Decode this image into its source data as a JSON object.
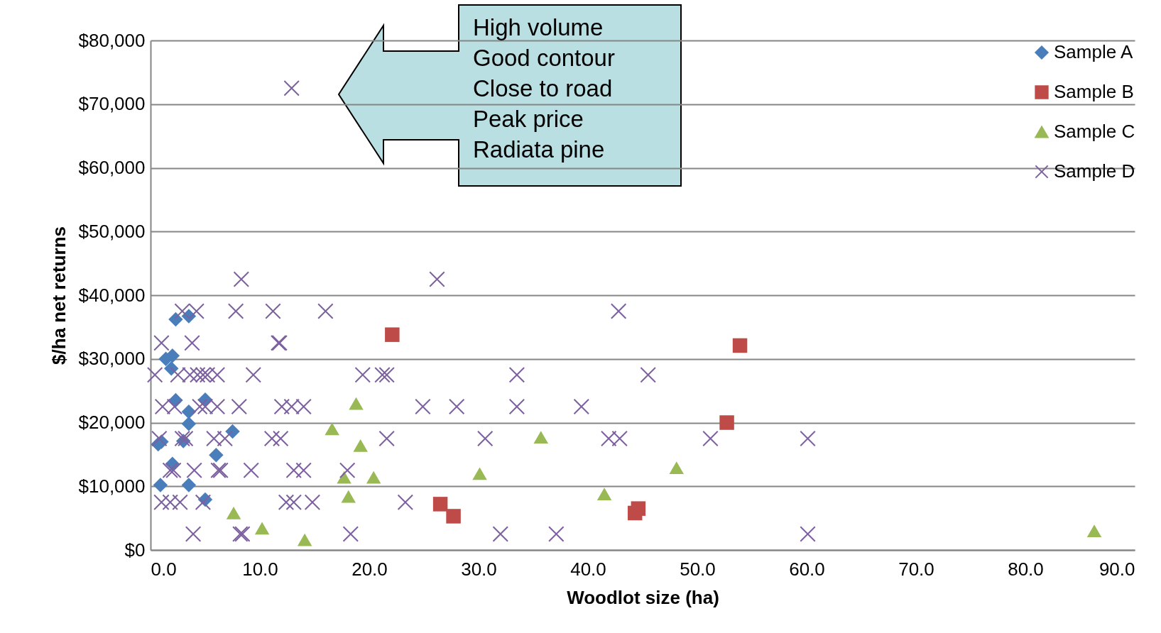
{
  "chart_data": {
    "type": "scatter",
    "xlabel": "Woodlot size (ha)",
    "ylabel": "$/ha net returns",
    "xlim": [
      0,
      90
    ],
    "xticks": [
      {
        "value": 0,
        "label": "0.0"
      },
      {
        "value": 10,
        "label": "10.0"
      },
      {
        "value": 20,
        "label": "20.0"
      },
      {
        "value": 30,
        "label": "30.0"
      },
      {
        "value": 40,
        "label": "40.0"
      },
      {
        "value": 50,
        "label": "50.0"
      },
      {
        "value": 60,
        "label": "60.0"
      },
      {
        "value": 70,
        "label": "70.0"
      },
      {
        "value": 80,
        "label": "80.0"
      },
      {
        "value": 90,
        "label": "90.0"
      }
    ],
    "ylim": [
      0,
      80000
    ],
    "yticks": [
      {
        "value": 0,
        "label": "$0"
      },
      {
        "value": 10000,
        "label": "$10,000"
      },
      {
        "value": 20000,
        "label": "$20,000"
      },
      {
        "value": 30000,
        "label": "$30,000"
      },
      {
        "value": 40000,
        "label": "$40,000"
      },
      {
        "value": 50000,
        "label": "$50,000"
      },
      {
        "value": 60000,
        "label": "$60,000"
      },
      {
        "value": 70000,
        "label": "$70,000"
      },
      {
        "value": 80000,
        "label": "$80,000"
      }
    ],
    "grid": "y",
    "legend": "top right",
    "annotations": [
      "High volume",
      "Good contour",
      "Close to road",
      "Peak price",
      "Radiata pine"
    ],
    "series": [
      {
        "name": "Sample A",
        "color": "#4a7ebb",
        "marker": "diamond",
        "x": [
          2.3,
          3.5,
          1.4,
          2.0,
          1.9,
          2.3,
          5.0,
          3.5,
          3.5,
          7.5,
          0.7,
          1.0,
          3.0,
          6.0,
          2.0,
          0.9,
          3.5,
          5.0
        ],
        "values": [
          36200,
          36700,
          30000,
          30500,
          28500,
          23500,
          23600,
          21700,
          19800,
          18600,
          16600,
          17000,
          17100,
          14900,
          13500,
          10200,
          10200,
          7900
        ]
      },
      {
        "name": "Sample B",
        "color": "#be4b48",
        "marker": "square",
        "x": [
          22.1,
          53.9,
          52.7,
          26.5,
          27.7,
          44.3,
          44.6
        ],
        "values": [
          33800,
          32100,
          20000,
          7200,
          5300,
          5800,
          6500
        ]
      },
      {
        "name": "Sample C",
        "color": "#98b954",
        "marker": "triangle",
        "x": [
          18.8,
          16.6,
          19.2,
          35.7,
          48.1,
          30.1,
          17.7,
          20.4,
          18.1,
          41.5,
          7.6,
          10.2,
          14.1,
          86.3
        ],
        "values": [
          23000,
          19000,
          16400,
          17700,
          12900,
          12000,
          11400,
          11400,
          8400,
          8800,
          5800,
          3400,
          1600,
          3000
        ]
      },
      {
        "name": "Sample D",
        "color": "#7d60a0",
        "marker": "cross",
        "x": [
          12.9,
          8.3,
          26.2,
          2.9,
          4.2,
          7.8,
          11.2,
          16.0,
          42.8,
          1.0,
          3.8,
          11.7,
          11.8,
          0.4,
          2.5,
          3.6,
          4.3,
          4.8,
          5.2,
          6.1,
          9.4,
          19.4,
          21.2,
          21.6,
          33.5,
          45.5,
          1.1,
          2.2,
          4.5,
          5.0,
          6.1,
          8.1,
          12.0,
          12.9,
          14.0,
          24.9,
          28.0,
          33.5,
          39.4,
          0.8,
          2.9,
          3.2,
          5.8,
          6.8,
          11.1,
          11.9,
          21.6,
          30.6,
          41.9,
          42.9,
          51.2,
          60.1,
          1.8,
          2.1,
          4.0,
          6.2,
          6.4,
          9.2,
          13.1,
          14.0,
          18.0,
          1.0,
          1.8,
          2.7,
          4.8,
          12.4,
          13.1,
          14.8,
          23.3,
          3.9,
          8.2,
          8.4,
          18.3,
          32.0,
          37.1,
          60.1
        ],
        "values": [
          72500,
          42500,
          42500,
          37500,
          37500,
          37500,
          37500,
          37500,
          37500,
          32500,
          32500,
          32500,
          32500,
          27500,
          27500,
          27500,
          27500,
          27500,
          27500,
          27500,
          27500,
          27500,
          27500,
          27500,
          27500,
          27500,
          22500,
          22500,
          22500,
          22500,
          22500,
          22500,
          22500,
          22500,
          22500,
          22500,
          22500,
          22500,
          22500,
          17500,
          17500,
          17500,
          17500,
          17500,
          17500,
          17500,
          17500,
          17500,
          17500,
          17500,
          17500,
          17500,
          12500,
          12500,
          12500,
          12500,
          12500,
          12500,
          12500,
          12500,
          12500,
          7500,
          7500,
          7500,
          7500,
          7500,
          7500,
          7500,
          7500,
          2500,
          2500,
          2500,
          2500,
          2500,
          2500,
          2500
        ]
      }
    ]
  }
}
